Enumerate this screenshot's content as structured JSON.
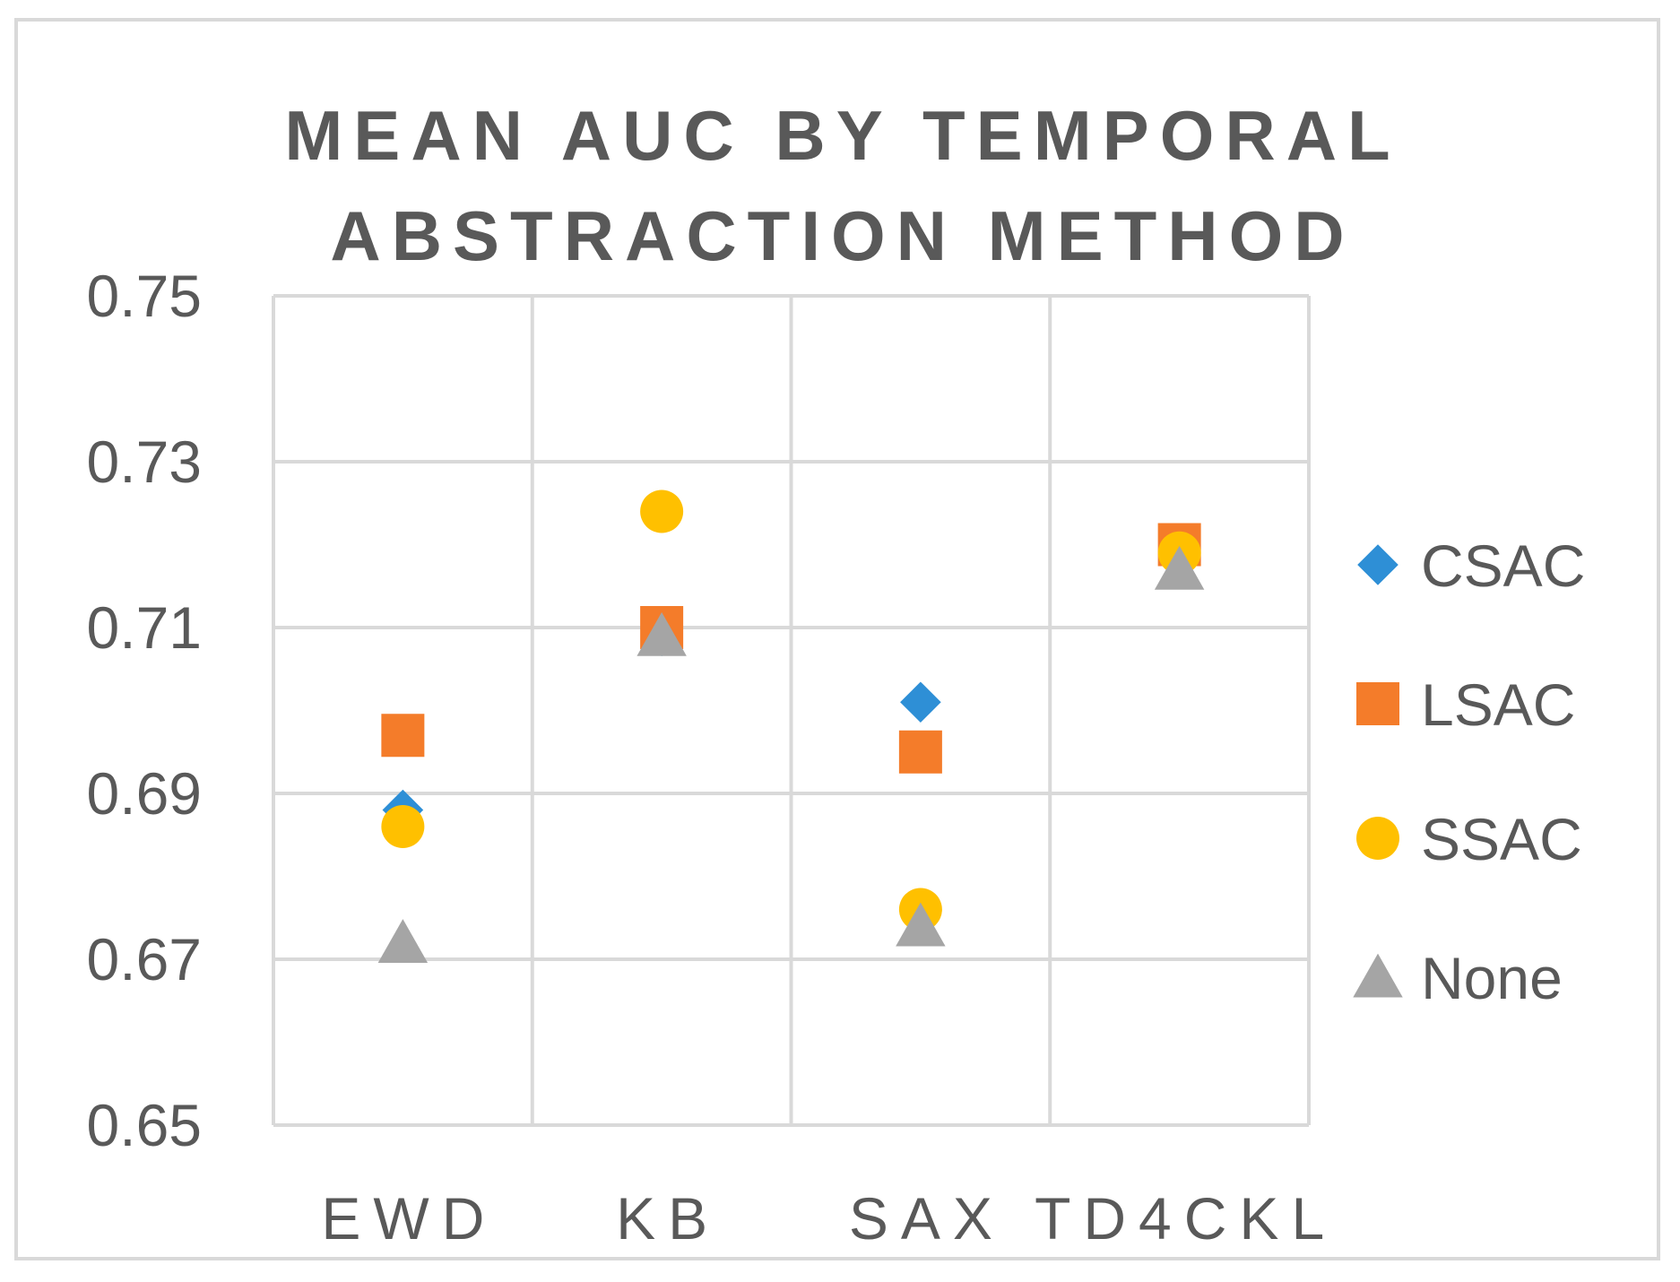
{
  "chart_data": {
    "type": "scatter",
    "title": "MEAN AUC BY TEMPORAL ABSTRACTION METHOD",
    "categories": [
      "EWD",
      "KB",
      "SAX",
      "TD4CKL"
    ],
    "ylim": [
      0.65,
      0.75
    ],
    "yticks": [
      "0.75",
      "0.73",
      "0.71",
      "0.69",
      "0.67",
      "0.65"
    ],
    "ytick_values": [
      0.75,
      0.73,
      0.71,
      0.69,
      0.67,
      0.65
    ],
    "grid": true,
    "legend_position": "right",
    "series": [
      {
        "name": "CSAC",
        "marker": "diamond",
        "color": "#2e8fd6",
        "values": [
          0.688,
          0.709,
          0.701,
          0.719
        ]
      },
      {
        "name": "LSAC",
        "marker": "square",
        "color": "#f47c2a",
        "values": [
          0.697,
          0.71,
          0.695,
          0.72
        ]
      },
      {
        "name": "SSAC",
        "marker": "circle",
        "color": "#ffc000",
        "values": [
          0.686,
          0.724,
          0.676,
          0.719
        ]
      },
      {
        "name": "None",
        "marker": "triangle",
        "color": "#a5a5a5",
        "values": [
          0.672,
          0.709,
          0.674,
          0.717
        ]
      }
    ]
  }
}
